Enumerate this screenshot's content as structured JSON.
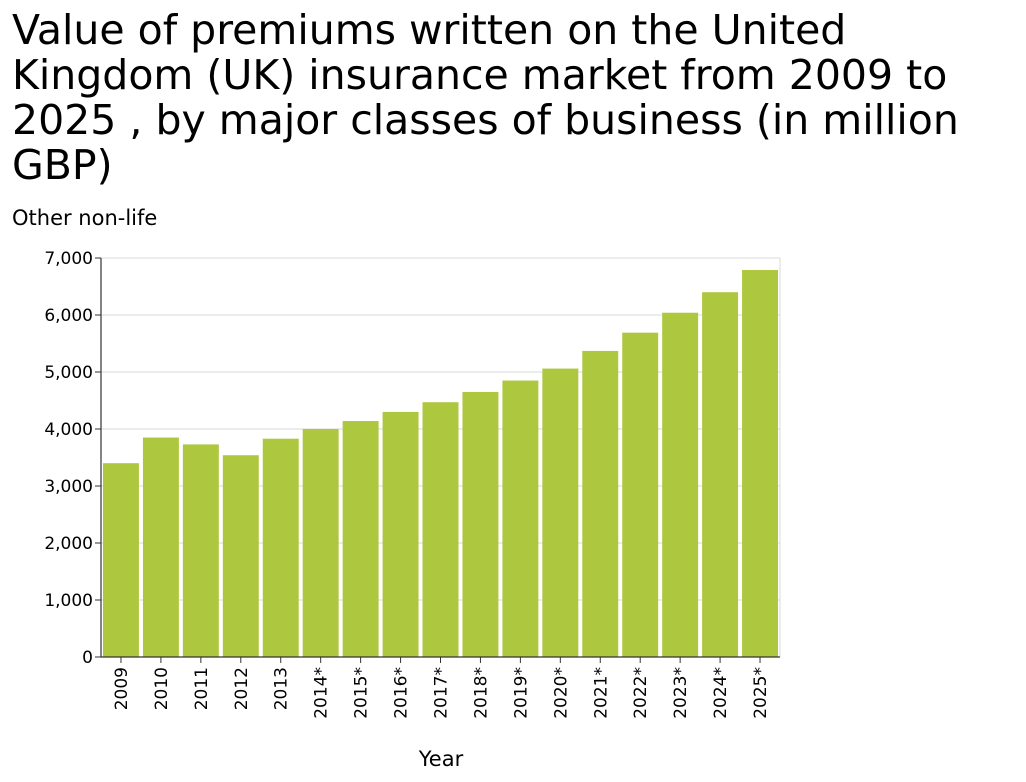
{
  "chart_data": {
    "type": "bar",
    "title": "Value of premiums written on the United Kingdom (UK) insurance market from 2009 to 2025 , by major classes of business (in million GBP)",
    "ylabel": "Other non-life",
    "xlabel": "Year",
    "categories": [
      "2009",
      "2010",
      "2011",
      "2012",
      "2013",
      "2014*",
      "2015*",
      "2016*",
      "2017*",
      "2018*",
      "2019*",
      "2020*",
      "2021*",
      "2022*",
      "2023*",
      "2024*",
      "2025*"
    ],
    "values": [
      3400,
      3850,
      3730,
      3540,
      3830,
      4000,
      4140,
      4300,
      4470,
      4650,
      4850,
      5060,
      5370,
      5690,
      6040,
      6400,
      6790
    ],
    "ylim": [
      0,
      7000
    ],
    "yticks": [
      0,
      1000,
      2000,
      3000,
      4000,
      5000,
      6000,
      7000
    ],
    "ytick_labels": [
      "0",
      "1,000",
      "2,000",
      "3,000",
      "4,000",
      "5,000",
      "6,000",
      "7,000"
    ],
    "grid": true,
    "bar_color": "#adc73f",
    "grid_color": "#d9d9d9",
    "axis_color": "#333333"
  }
}
